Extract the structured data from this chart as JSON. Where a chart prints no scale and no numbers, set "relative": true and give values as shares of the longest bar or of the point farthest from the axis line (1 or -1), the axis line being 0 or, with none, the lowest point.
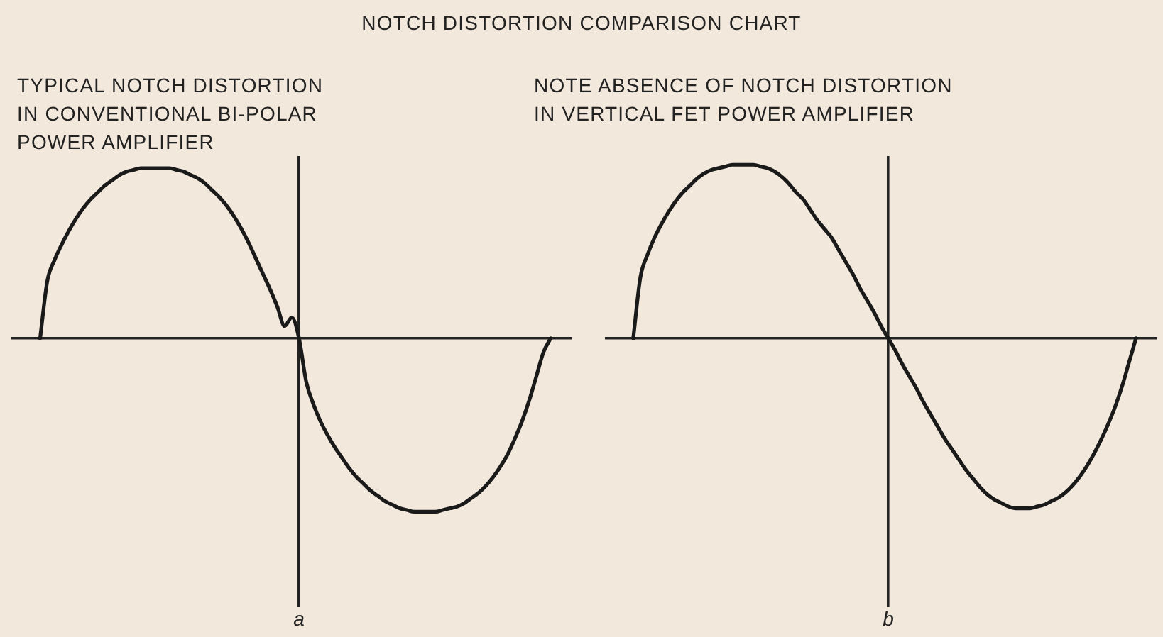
{
  "chart_data": [
    {
      "type": "line",
      "title": "NOTCH DISTORTION COMPARISON CHART",
      "subtitle": "TYPICAL NOTCH DISTORTION\nIN CONVENTIONAL BI-POLAR\nPOWER AMPLIFIER",
      "relative": true,
      "marker": "none",
      "annotations": [
        "a"
      ],
      "categories": [
        null,
        null,
        null,
        null,
        null,
        null,
        null,
        null,
        null,
        null,
        null,
        null,
        null,
        null,
        null,
        null,
        null,
        null,
        null,
        null,
        null,
        null,
        null,
        null,
        null,
        null,
        null,
        null,
        null,
        null,
        null,
        null,
        null,
        null,
        null,
        null,
        null,
        null,
        null,
        null,
        null,
        null,
        null,
        null,
        null,
        null,
        null,
        null,
        null,
        null,
        null,
        null,
        null,
        null,
        null,
        null,
        null,
        null,
        null,
        null,
        null,
        null,
        null,
        null,
        null,
        null,
        null,
        null,
        null,
        null,
        null,
        null,
        null,
        null,
        null,
        null,
        null,
        null,
        null
      ],
      "series": [
        {
          "color": "#1a1a1a",
          "values": [
            null,
            null,
            null,
            null,
            0,
            0.33,
            0.45,
            0.54,
            0.62,
            0.69,
            0.75,
            0.8,
            0.84,
            0.88,
            0.91,
            0.94,
            0.96,
            0.97,
            0.98,
            0.98,
            0.98,
            0.98,
            0.98,
            0.97,
            0.96,
            0.94,
            0.92,
            0.89,
            0.85,
            0.81,
            0.76,
            0.7,
            0.63,
            0.55,
            0.46,
            0.37,
            0.28,
            0.18,
            0.07,
            0.12,
            0,
            -0.25,
            -0.38,
            -0.48,
            -0.56,
            -0.63,
            -0.69,
            -0.75,
            -0.8,
            -0.84,
            -0.88,
            -0.91,
            -0.94,
            -0.96,
            -0.98,
            -0.99,
            -1,
            -1,
            -1,
            -1,
            -0.99,
            -0.98,
            -0.97,
            -0.95,
            -0.92,
            -0.89,
            -0.85,
            -0.8,
            -0.74,
            -0.67,
            -0.58,
            -0.48,
            -0.36,
            -0.22,
            -0.08,
            0,
            null,
            null,
            null
          ]
        }
      ]
    },
    {
      "type": "line",
      "subtitle": "NOTE ABSENCE OF NOTCH DISTORTION\nIN VERTICAL FET POWER AMPLIFIER",
      "relative": true,
      "marker": "none",
      "annotations": [
        "b"
      ],
      "categories": [
        null,
        null,
        null,
        null,
        null,
        null,
        null,
        null,
        null,
        null,
        null,
        null,
        null,
        null,
        null,
        null,
        null,
        null,
        null,
        null,
        null,
        null,
        null,
        null,
        null,
        null,
        null,
        null,
        null,
        null,
        null,
        null,
        null,
        null,
        null,
        null,
        null,
        null,
        null,
        null,
        null,
        null,
        null,
        null,
        null,
        null,
        null,
        null,
        null,
        null,
        null,
        null,
        null,
        null,
        null,
        null,
        null,
        null,
        null,
        null,
        null,
        null,
        null,
        null,
        null,
        null,
        null,
        null,
        null,
        null,
        null,
        null,
        null,
        null,
        null,
        null,
        null,
        null,
        null
      ],
      "series": [
        {
          "color": "#1a1a1a",
          "values": [
            null,
            null,
            null,
            null,
            0,
            0.35,
            0.48,
            0.58,
            0.66,
            0.73,
            0.79,
            0.84,
            0.88,
            0.92,
            0.95,
            0.97,
            0.98,
            0.99,
            1,
            1,
            1,
            1,
            0.99,
            0.98,
            0.96,
            0.93,
            0.89,
            0.84,
            0.8,
            0.74,
            0.68,
            0.63,
            0.58,
            0.51,
            0.44,
            0.37,
            0.29,
            0.22,
            0.15,
            0.07,
            0,
            -0.07,
            -0.15,
            -0.22,
            -0.29,
            -0.37,
            -0.44,
            -0.51,
            -0.58,
            -0.64,
            -0.7,
            -0.76,
            -0.81,
            -0.86,
            -0.9,
            -0.93,
            -0.95,
            -0.97,
            -0.98,
            -0.98,
            -0.98,
            -0.97,
            -0.96,
            -0.94,
            -0.92,
            -0.89,
            -0.85,
            -0.8,
            -0.74,
            -0.67,
            -0.59,
            -0.5,
            -0.4,
            -0.28,
            -0.14,
            0,
            null,
            null,
            null
          ]
        }
      ]
    }
  ]
}
